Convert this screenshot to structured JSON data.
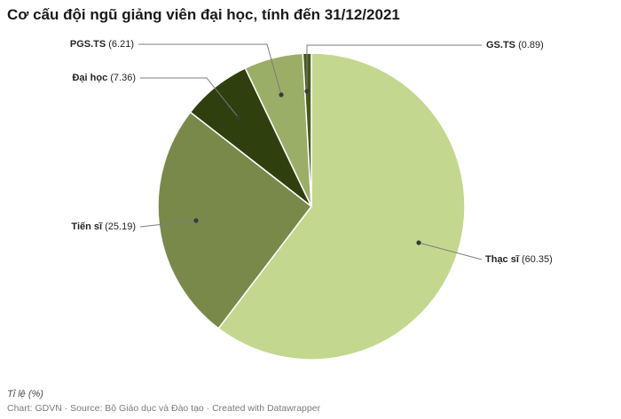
{
  "title": "Cơ cấu đội ngũ giảng viên đại học, tính đến 31/12/2021",
  "footer": {
    "axis_note": "Tỉ lệ (%)",
    "credit": "Chart: GDVN · Source: Bộ Giáo dục và Đào tạo · Created with Datawrapper"
  },
  "chart_data": {
    "type": "pie",
    "title": "Cơ cấu đội ngũ giảng viên đại học, tính đến 31/12/2021",
    "unit_label": "Tỉ lệ (%)",
    "start_angle_deg": 0,
    "direction": "clockwise",
    "separator_color": "#ffffff",
    "leader_line_color": "#7d7d7d",
    "leader_dot_color": "#3a3a3a",
    "slices": [
      {
        "label": "Thạc sĩ",
        "value": 60.35,
        "color": "#c3d78f"
      },
      {
        "label": "Tiến sĩ",
        "value": 25.19,
        "color": "#79894a"
      },
      {
        "label": "Đại học",
        "value": 7.36,
        "color": "#2f400e"
      },
      {
        "label": "PGS.TS",
        "value": 6.21,
        "color": "#9bae67"
      },
      {
        "label": "GS.TS",
        "value": 0.89,
        "color": "#46591d"
      }
    ]
  }
}
